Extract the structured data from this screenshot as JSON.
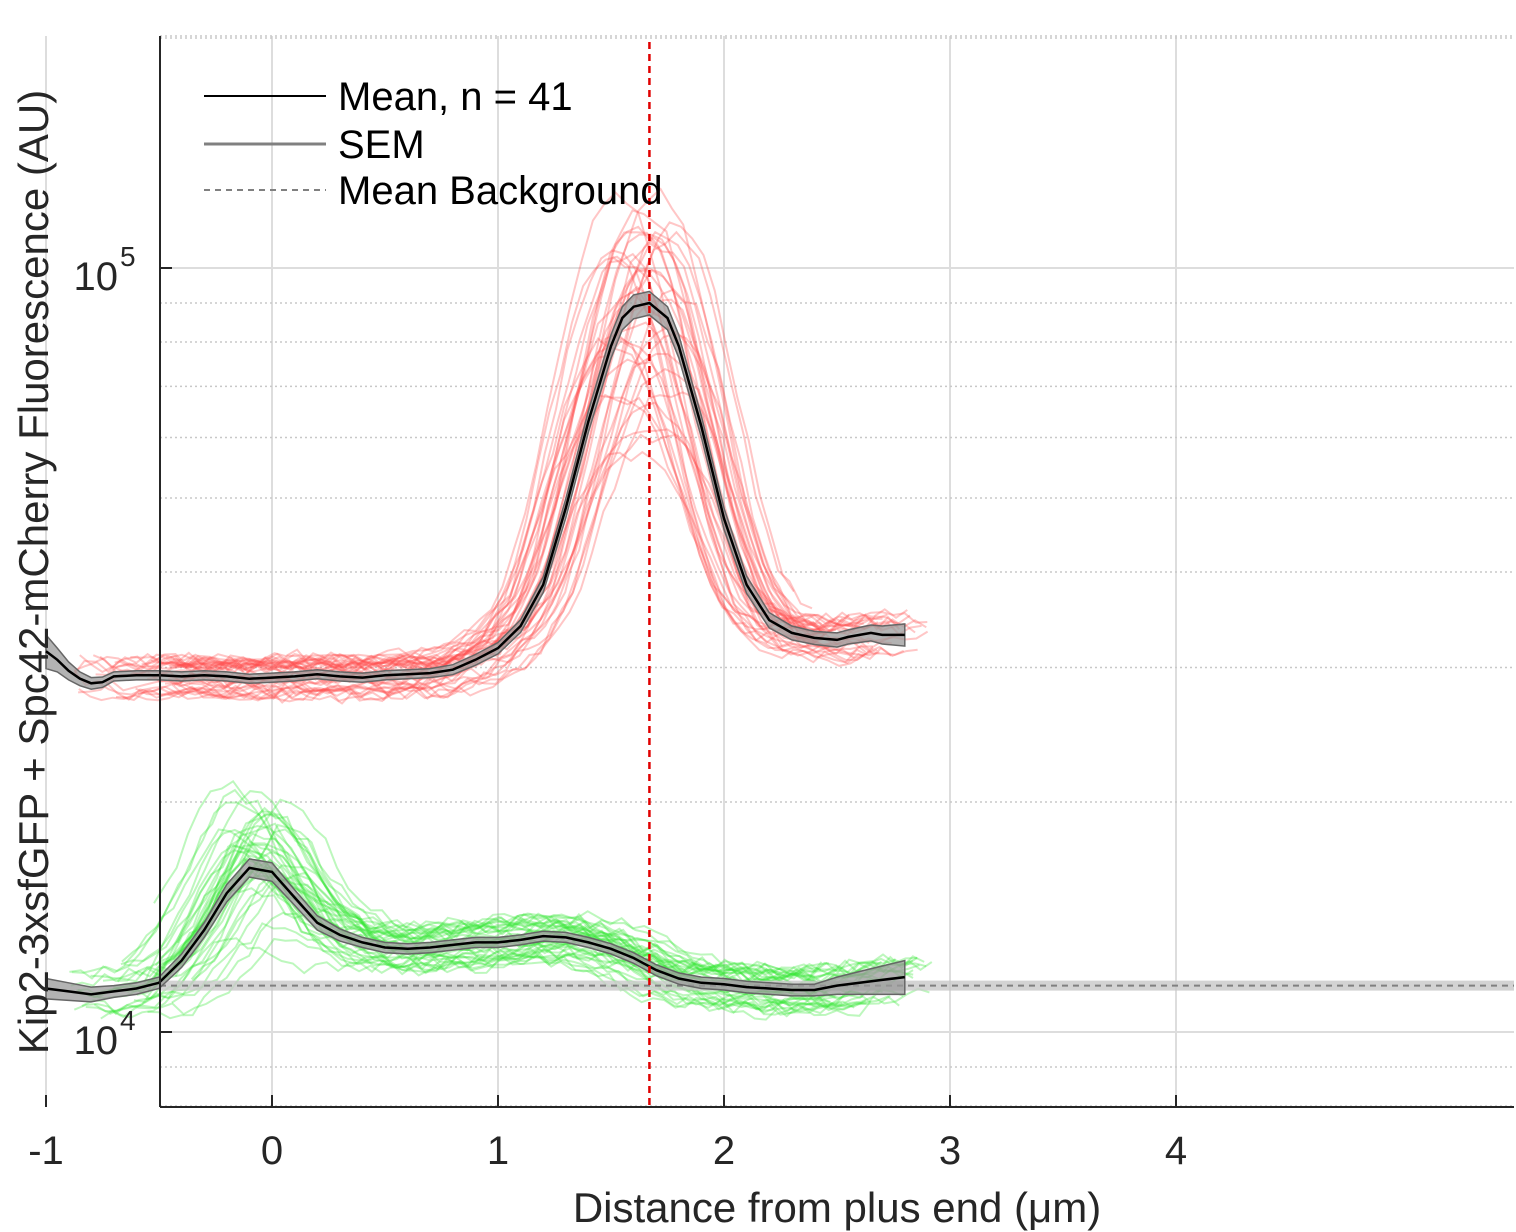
{
  "chart_data": {
    "type": "line",
    "title": "",
    "xlabel": "Distance from plus end (μm)",
    "ylabel": "Kip2-3xsfGFP + Spc42-mCherry Fluorescence (AU)",
    "xlim": [
      -1.5,
      4.5
    ],
    "ylim": [
      8000,
      200000
    ],
    "yscale": "log",
    "grid": true,
    "minor_grid": true,
    "legend_position": "top-left",
    "x_ticks": [
      -1,
      0,
      1,
      2,
      3,
      4
    ],
    "x_tick_labels": [
      "-1",
      "0",
      "1",
      "2",
      "3",
      "4"
    ],
    "y_ticks": [
      10000,
      100000
    ],
    "y_tick_labels": [
      {
        "base": "10",
        "exp": "4"
      },
      {
        "base": "10",
        "exp": "5"
      }
    ],
    "legend": [
      {
        "label": "Mean, n = 41",
        "style": "solid",
        "color": "#000000"
      },
      {
        "label": "SEM",
        "style": "solid",
        "color": "#808080"
      },
      {
        "label": "Mean Background",
        "style": "dashed",
        "color": "#808080"
      }
    ],
    "reference_line": {
      "x": 1.67,
      "color": "#e00000",
      "style": "dashed"
    },
    "background_level": 11500,
    "series": [
      {
        "name": "Mean, n = 41",
        "role": "mcherry_mean",
        "color": "#000000",
        "x": [
          -1.0,
          -0.95,
          -0.9,
          -0.85,
          -0.8,
          -0.75,
          -0.7,
          -0.6,
          -0.5,
          -0.4,
          -0.3,
          -0.2,
          -0.1,
          0.0,
          0.1,
          0.2,
          0.3,
          0.4,
          0.5,
          0.6,
          0.7,
          0.8,
          0.9,
          1.0,
          1.1,
          1.2,
          1.3,
          1.4,
          1.5,
          1.55,
          1.6,
          1.67,
          1.75,
          1.8,
          1.9,
          2.0,
          2.1,
          2.2,
          2.3,
          2.4,
          2.5,
          2.55,
          2.6,
          2.65,
          2.7,
          2.8
        ],
        "values": [
          31500,
          30700,
          29700,
          29000,
          28600,
          28700,
          29200,
          29300,
          29300,
          29200,
          29300,
          29200,
          29000,
          29100,
          29200,
          29400,
          29200,
          29100,
          29300,
          29400,
          29500,
          29800,
          30700,
          31800,
          34000,
          38500,
          48500,
          63000,
          79000,
          86000,
          89000,
          90000,
          86000,
          79000,
          62000,
          47000,
          38500,
          34600,
          33300,
          32800,
          32600,
          32900,
          33100,
          33300,
          33100,
          33100
        ],
        "sem": [
          1600,
          1100,
          800,
          600,
          500,
          450,
          400,
          400,
          400,
          400,
          400,
          400,
          400,
          400,
          400,
          400,
          400,
          400,
          400,
          400,
          400,
          450,
          500,
          550,
          650,
          900,
          1400,
          2000,
          2800,
          3000,
          3200,
          3200,
          3000,
          2700,
          2000,
          1500,
          1000,
          800,
          700,
          650,
          700,
          700,
          750,
          800,
          900,
          1100
        ]
      },
      {
        "name": "",
        "role": "gfp_mean",
        "color": "#000000",
        "x": [
          -1.0,
          -0.9,
          -0.8,
          -0.7,
          -0.6,
          -0.5,
          -0.4,
          -0.3,
          -0.2,
          -0.1,
          0.0,
          0.1,
          0.2,
          0.3,
          0.4,
          0.5,
          0.6,
          0.7,
          0.8,
          0.9,
          1.0,
          1.1,
          1.2,
          1.3,
          1.4,
          1.5,
          1.6,
          1.7,
          1.8,
          1.9,
          2.0,
          2.1,
          2.2,
          2.3,
          2.4,
          2.5,
          2.6,
          2.7,
          2.8
        ],
        "values": [
          11400,
          11300,
          11200,
          11300,
          11400,
          11600,
          12400,
          13600,
          15200,
          16400,
          16200,
          15000,
          13900,
          13400,
          13100,
          12900,
          12850,
          12900,
          13000,
          13100,
          13100,
          13200,
          13350,
          13300,
          13100,
          12850,
          12500,
          12050,
          11750,
          11600,
          11550,
          11450,
          11400,
          11350,
          11350,
          11500,
          11600,
          11700,
          11800
        ],
        "sem": [
          350,
          300,
          250,
          200,
          200,
          200,
          250,
          300,
          400,
          450,
          450,
          350,
          300,
          250,
          200,
          200,
          200,
          200,
          200,
          200,
          200,
          200,
          200,
          200,
          200,
          200,
          200,
          200,
          200,
          200,
          200,
          200,
          200,
          200,
          200,
          300,
          400,
          500,
          600
        ]
      }
    ],
    "individual_traces": [
      {
        "channel": "Spc42-mCherry",
        "color": "#ff4d4d",
        "count": 41
      },
      {
        "channel": "Kip2-3xsfGFP",
        "color": "#33e633",
        "count": 41
      }
    ]
  }
}
